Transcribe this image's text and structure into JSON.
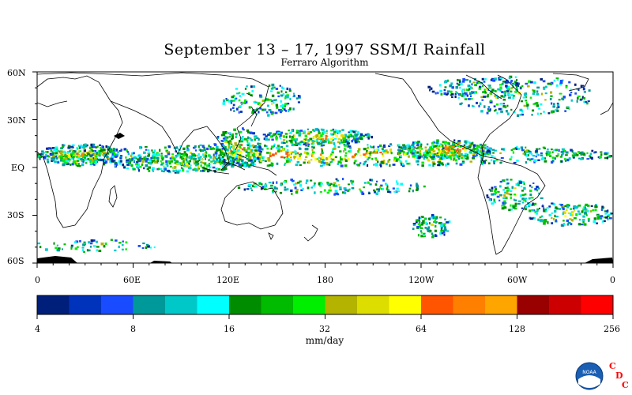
{
  "title": "September 13 – 17, 1997 SSM/I Rainfall",
  "subtitle": "Ferraro Algorithm",
  "lat_labels": [
    "60N",
    "30N",
    "EQ",
    "30S",
    "60S"
  ],
  "lon_labels": [
    "0",
    "60E",
    "120E",
    "180",
    "120W",
    "60W",
    "0"
  ],
  "colorbar": {
    "tick_labels": [
      "4",
      "8",
      "16",
      "32",
      "64",
      "128",
      "256"
    ],
    "units": "mm/day",
    "colors": [
      "#001f7a",
      "#0033bb",
      "#1a4cff",
      "#009999",
      "#00c8c8",
      "#00ffff",
      "#008c00",
      "#00bb00",
      "#00ee00",
      "#b3b300",
      "#dddd00",
      "#ffff00",
      "#ff5500",
      "#ff8000",
      "#ffa500",
      "#990000",
      "#cc0000",
      "#ff0000"
    ]
  },
  "logo": {
    "text": "NOAA",
    "letters": [
      "C",
      "D",
      "C"
    ],
    "letter_color": "#ff0000"
  }
}
